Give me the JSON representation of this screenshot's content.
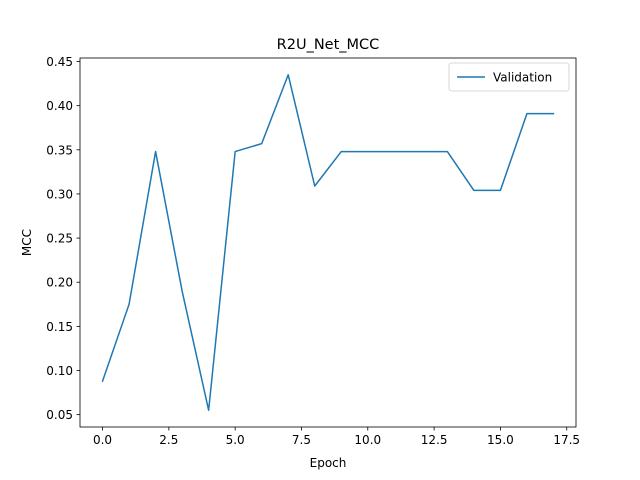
{
  "chart_data": {
    "type": "line",
    "title": "R2U_Net_MCC",
    "xlabel": "Epoch",
    "ylabel": "MCC",
    "xlim": [
      -0.85,
      17.85
    ],
    "ylim": [
      0.036,
      0.454
    ],
    "xticks": [
      0.0,
      2.5,
      5.0,
      7.5,
      10.0,
      12.5,
      15.0,
      17.5
    ],
    "xtick_labels": [
      "0.0",
      "2.5",
      "5.0",
      "7.5",
      "10.0",
      "12.5",
      "15.0",
      "17.5"
    ],
    "yticks": [
      0.05,
      0.1,
      0.15,
      0.2,
      0.25,
      0.3,
      0.35,
      0.4,
      0.45
    ],
    "ytick_labels": [
      "0.05",
      "0.10",
      "0.15",
      "0.20",
      "0.25",
      "0.30",
      "0.35",
      "0.40",
      "0.45"
    ],
    "grid": false,
    "legend_position": "top-right",
    "series": [
      {
        "name": "Validation",
        "color": "#1f77b4",
        "x": [
          0,
          1,
          2,
          3,
          4,
          5,
          6,
          7,
          8,
          9,
          10,
          11,
          12,
          13,
          14,
          15,
          16,
          17
        ],
        "y": [
          0.088,
          0.175,
          0.348,
          0.19,
          0.055,
          0.348,
          0.357,
          0.435,
          0.309,
          0.348,
          0.348,
          0.348,
          0.348,
          0.348,
          0.304,
          0.304,
          0.391,
          0.391
        ]
      }
    ]
  }
}
